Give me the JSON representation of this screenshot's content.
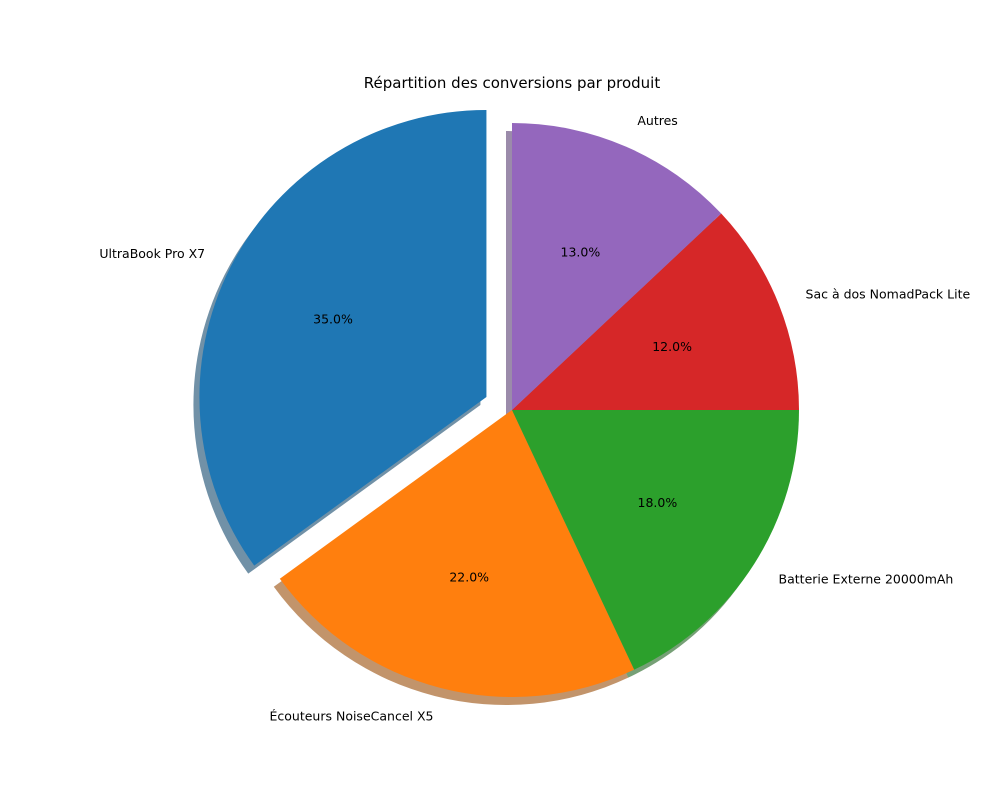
{
  "chart_data": {
    "type": "pie",
    "title": "Répartition des conversions par produit",
    "categories": [
      "UltraBook Pro X7",
      "Écouteurs NoiseCancel X5",
      "Batterie Externe 20000mAh",
      "Sac à dos NomadPack Lite",
      "Autres"
    ],
    "values": [
      35.0,
      22.0,
      18.0,
      12.0,
      13.0
    ],
    "percent_labels": [
      "35.0%",
      "22.0%",
      "18.0%",
      "12.0%",
      "13.0%"
    ],
    "colors": [
      "#1f77b4",
      "#ff7f0e",
      "#2ca02c",
      "#d62728",
      "#9467bd"
    ],
    "exploded": [
      true,
      false,
      false,
      false,
      false
    ],
    "shadow": true,
    "start_angle_deg": 90,
    "direction": "counterclockwise",
    "legend": "none"
  }
}
